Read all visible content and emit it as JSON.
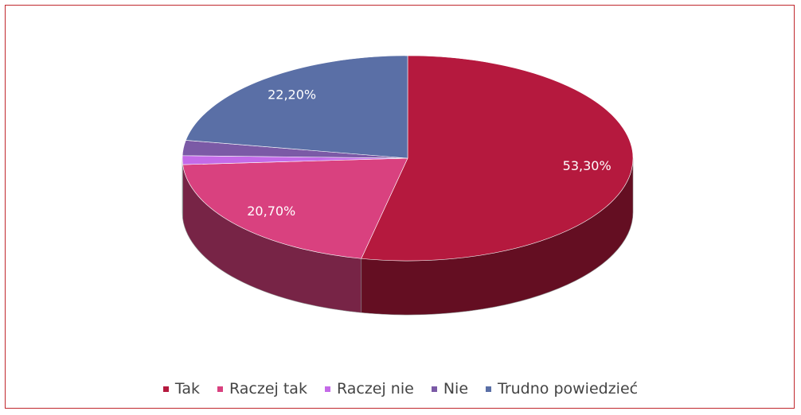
{
  "chart_data": {
    "type": "pie3d",
    "categories": [
      "Tak",
      "Raczej tak",
      "Raczej nie",
      "Nie",
      "Trudno powiedzieć"
    ],
    "values": [
      53.3,
      20.7,
      1.4,
      2.4,
      22.2
    ],
    "value_labels": [
      "53,30%",
      "20,70%",
      null,
      null,
      "22,20%"
    ],
    "colors": [
      "#b5193e",
      "#d9417f",
      "#c46ae8",
      "#7b5aa6",
      "#5a6fa6"
    ],
    "legend": "bottom"
  }
}
